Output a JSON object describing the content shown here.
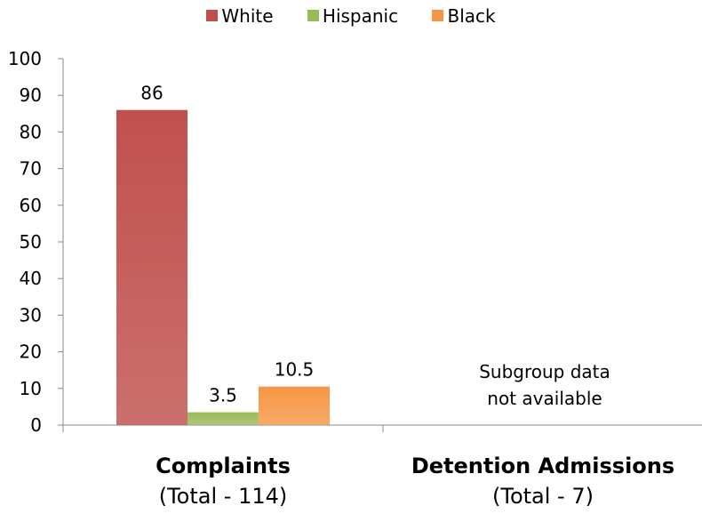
{
  "chart_data": {
    "type": "bar",
    "categories": [
      "Complaints",
      "Detention Admissions"
    ],
    "category_sublabels": [
      "(Total - 114)",
      "(Total - 7)"
    ],
    "series": [
      {
        "name": "White",
        "values": [
          86,
          null
        ],
        "color": "#c0504d"
      },
      {
        "name": "Hispanic",
        "values": [
          3.5,
          null
        ],
        "color": "#9bbb59"
      },
      {
        "name": "Black",
        "values": [
          10.5,
          null
        ],
        "color": "#f79646"
      }
    ],
    "ylim": [
      0,
      100
    ],
    "yticks": [
      0,
      10,
      20,
      30,
      40,
      50,
      60,
      70,
      80,
      90,
      100
    ],
    "grid": false,
    "legend": "top",
    "annotations": [
      "Subgroup data",
      "not available"
    ]
  }
}
